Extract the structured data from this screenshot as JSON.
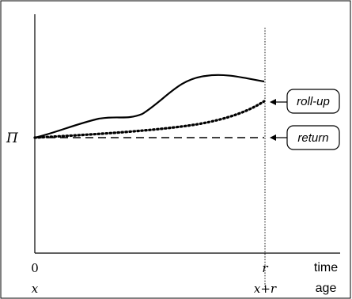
{
  "y_axis": {
    "pi_label": "Π"
  },
  "x_axis": {
    "time_start": "0",
    "time_end": "r",
    "time_label": "time",
    "age_start": "x",
    "age_end": "x+r",
    "age_label": "age"
  },
  "callouts": {
    "roll_up": "roll-up",
    "return": "return"
  },
  "colors": {
    "line": "#000000",
    "background": "#ffffff"
  }
}
